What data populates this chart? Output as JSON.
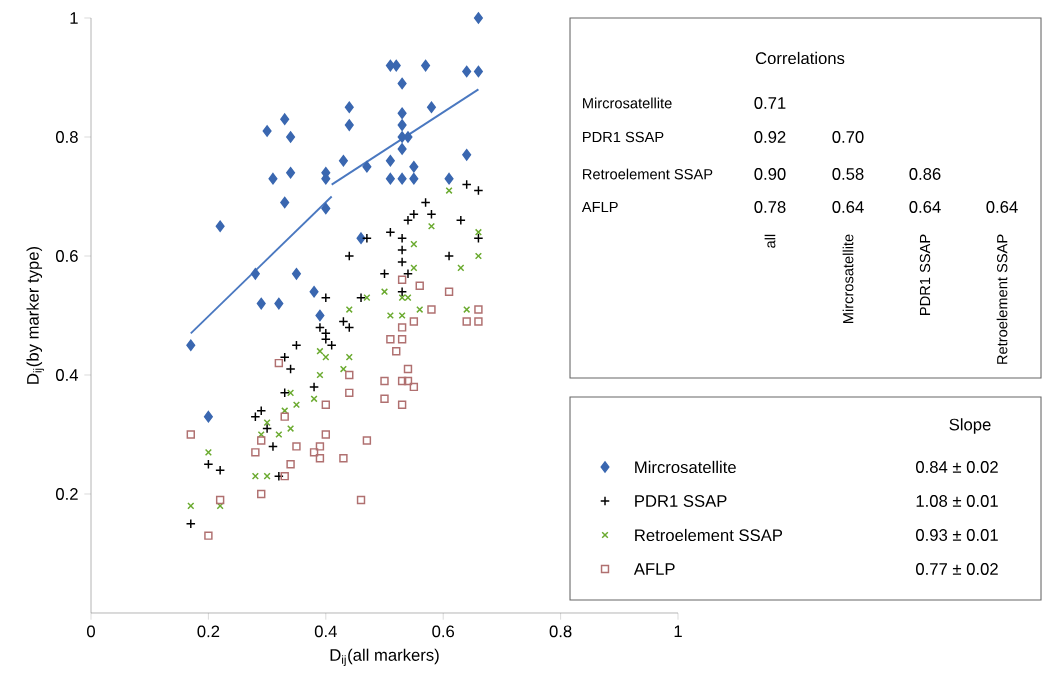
{
  "chart_data": {
    "type": "scatter",
    "xlabel": "D$_{ij}$(all markers)",
    "ylabel": "D$_{ij}$(by marker type)",
    "xlim": [
      0,
      1
    ],
    "ylim": [
      0,
      1
    ],
    "xticks": [
      0,
      0.2,
      0.4,
      0.6,
      0.8,
      1
    ],
    "yticks": [
      0.2,
      0.4,
      0.6,
      0.8,
      1
    ],
    "legend": "right",
    "series": [
      {
        "name": "Mircrosatellite",
        "color": "#3a67b0",
        "marker": "diamond",
        "x": [
          0.17,
          0.2,
          0.22,
          0.28,
          0.29,
          0.32,
          0.35,
          0.38,
          0.39,
          0.46,
          0.33,
          0.4,
          0.31,
          0.34,
          0.4,
          0.4,
          0.43,
          0.47,
          0.51,
          0.53,
          0.53,
          0.55,
          0.55,
          0.3,
          0.34,
          0.33,
          0.44,
          0.53,
          0.53,
          0.53,
          0.54,
          0.53,
          0.51,
          0.52,
          0.44,
          0.51,
          0.57,
          0.58,
          0.61,
          0.64,
          0.66,
          0.64,
          0.66
        ],
        "values": [
          0.45,
          0.33,
          0.65,
          0.57,
          0.52,
          0.52,
          0.57,
          0.54,
          0.5,
          0.63,
          0.69,
          0.68,
          0.73,
          0.74,
          0.74,
          0.73,
          0.76,
          0.75,
          0.76,
          0.78,
          0.73,
          0.75,
          0.73,
          0.81,
          0.8,
          0.83,
          0.85,
          0.84,
          0.82,
          0.8,
          0.8,
          0.89,
          0.92,
          0.92,
          0.82,
          0.73,
          0.92,
          0.85,
          0.73,
          0.77,
          0.91,
          0.91,
          1.0
        ]
      },
      {
        "name": "PDR1 SSAP",
        "color": "#000000",
        "marker": "plus",
        "x": [
          0.17,
          0.2,
          0.22,
          0.28,
          0.29,
          0.3,
          0.31,
          0.32,
          0.33,
          0.33,
          0.34,
          0.35,
          0.38,
          0.39,
          0.4,
          0.4,
          0.41,
          0.43,
          0.44,
          0.46,
          0.53,
          0.4,
          0.44,
          0.5,
          0.53,
          0.53,
          0.54,
          0.47,
          0.51,
          0.53,
          0.54,
          0.55,
          0.57,
          0.58,
          0.61,
          0.63,
          0.64,
          0.66,
          0.66
        ],
        "values": [
          0.15,
          0.25,
          0.24,
          0.33,
          0.34,
          0.31,
          0.28,
          0.23,
          0.43,
          0.37,
          0.41,
          0.45,
          0.38,
          0.48,
          0.47,
          0.46,
          0.45,
          0.49,
          0.48,
          0.53,
          0.54,
          0.53,
          0.6,
          0.57,
          0.59,
          0.61,
          0.57,
          0.63,
          0.64,
          0.63,
          0.66,
          0.67,
          0.69,
          0.67,
          0.6,
          0.66,
          0.72,
          0.71,
          0.63
        ]
      },
      {
        "name": "Retroelement SSAP",
        "color": "#6aaa2f",
        "marker": "cross",
        "x": [
          0.17,
          0.22,
          0.2,
          0.28,
          0.3,
          0.29,
          0.3,
          0.32,
          0.34,
          0.33,
          0.34,
          0.35,
          0.38,
          0.39,
          0.4,
          0.39,
          0.43,
          0.44,
          0.44,
          0.47,
          0.5,
          0.53,
          0.54,
          0.51,
          0.53,
          0.56,
          0.55,
          0.55,
          0.58,
          0.61,
          0.63,
          0.64,
          0.66,
          0.66
        ],
        "values": [
          0.18,
          0.18,
          0.27,
          0.23,
          0.23,
          0.3,
          0.32,
          0.3,
          0.31,
          0.34,
          0.37,
          0.35,
          0.36,
          0.4,
          0.43,
          0.44,
          0.41,
          0.43,
          0.51,
          0.53,
          0.54,
          0.53,
          0.53,
          0.5,
          0.5,
          0.51,
          0.58,
          0.62,
          0.65,
          0.71,
          0.58,
          0.51,
          0.64,
          0.6
        ]
      },
      {
        "name": "AFLP",
        "color": "#b07070",
        "marker": "square",
        "x": [
          0.17,
          0.2,
          0.22,
          0.28,
          0.29,
          0.29,
          0.33,
          0.33,
          0.34,
          0.35,
          0.32,
          0.38,
          0.39,
          0.39,
          0.4,
          0.4,
          0.43,
          0.44,
          0.44,
          0.46,
          0.47,
          0.5,
          0.5,
          0.51,
          0.52,
          0.53,
          0.53,
          0.53,
          0.54,
          0.54,
          0.55,
          0.53,
          0.53,
          0.55,
          0.56,
          0.58,
          0.61,
          0.64,
          0.66,
          0.66
        ],
        "values": [
          0.3,
          0.13,
          0.19,
          0.27,
          0.2,
          0.29,
          0.33,
          0.23,
          0.25,
          0.28,
          0.42,
          0.27,
          0.26,
          0.28,
          0.3,
          0.35,
          0.26,
          0.37,
          0.4,
          0.19,
          0.29,
          0.36,
          0.39,
          0.46,
          0.44,
          0.48,
          0.46,
          0.35,
          0.39,
          0.41,
          0.38,
          0.39,
          0.56,
          0.49,
          0.55,
          0.51,
          0.54,
          0.49,
          0.51,
          0.49
        ]
      },
      {
        "type": "line",
        "color": "#4a78c0",
        "marker": "none",
        "x": [
          0.17,
          0.41
        ],
        "values": [
          0.47,
          0.7
        ]
      },
      {
        "type": "line",
        "color": "#4a78c0",
        "marker": "none",
        "x": [
          0.41,
          0.66
        ],
        "values": [
          0.72,
          0.88
        ]
      }
    ],
    "annotations": [
      "Correlations",
      "Mircrosatellite",
      "PDR1 SSAP",
      "Retroelement SSAP",
      "AFLP",
      "0.71",
      "0.92",
      "0.70",
      "0.90",
      "0.58",
      "0.86",
      "0.78",
      "0.64",
      "0.64",
      "0.64",
      "all",
      "Mircrosatellite",
      "PDR1 SSAP",
      "Retroelement SSAP",
      "Slope",
      "0.84 ± 0.02",
      "1.08 ± 0.01",
      "0.93 ± 0.01",
      "0.77 ± 0.02"
    ]
  }
}
